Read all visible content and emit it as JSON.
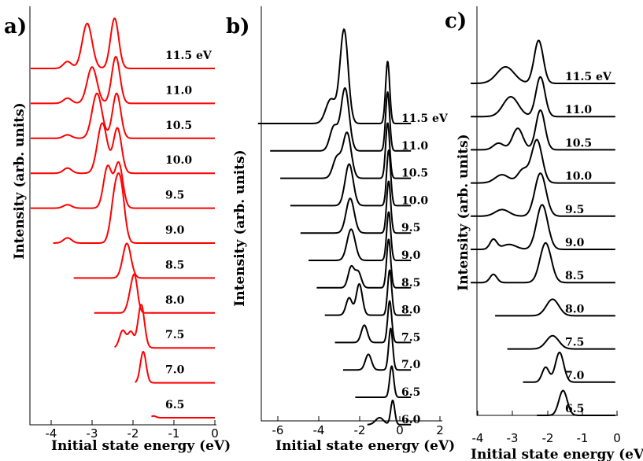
{
  "figure": {
    "panels": [
      {
        "letter": "a)",
        "xlabel": "Initial state energy (eV)",
        "ylabel": "Intensity (arb. units)",
        "ticks": [
          "-4",
          "-3",
          "-2",
          "-1",
          "0"
        ]
      },
      {
        "letter": "b)",
        "xlabel": "Initial state energy (eV)",
        "ylabel": "Intensity (arb. units)",
        "ticks": [
          "-6",
          "-4",
          "-2",
          "0",
          "2"
        ]
      },
      {
        "letter": "c)",
        "xlabel": "Initial state energy (eV)",
        "ylabel": "Intensity (arb. units)",
        "ticks": [
          "-4",
          "-3",
          "-2",
          "-1",
          "0"
        ]
      }
    ]
  },
  "chart_data": [
    {
      "type": "line",
      "panel": "a)",
      "title": "",
      "xlabel": "Initial state energy (eV)",
      "ylabel": "Intensity (arb. units)",
      "xlim": [
        -4.5,
        0
      ],
      "color": "#ff0000",
      "series": [
        {
          "name": "11.5 eV",
          "label": "11.5 eV",
          "xmin": -4.5,
          "peaks": [
            [
              -3.6,
              0.2,
              0.1
            ],
            [
              -3.12,
              1.3,
              0.12
            ],
            [
              -2.45,
              1.45,
              0.1
            ]
          ]
        },
        {
          "name": "11.0 eV",
          "label": "11.0",
          "xmin": -4.5,
          "peaks": [
            [
              -3.6,
              0.15,
              0.1
            ],
            [
              -3.0,
              1.05,
              0.12
            ],
            [
              -2.42,
              1.35,
              0.1
            ]
          ]
        },
        {
          "name": "10.5 eV",
          "label": "10.5",
          "xmin": -4.5,
          "peaks": [
            [
              -3.6,
              0.1,
              0.1
            ],
            [
              -2.88,
              1.3,
              0.12
            ],
            [
              -2.4,
              1.3,
              0.1
            ]
          ]
        },
        {
          "name": "10.0 eV",
          "label": "10.0",
          "xmin": -4.5,
          "peaks": [
            [
              -3.6,
              0.15,
              0.1
            ],
            [
              -2.75,
              1.45,
              0.12
            ],
            [
              -2.38,
              1.3,
              0.1
            ]
          ]
        },
        {
          "name": "9.5 eV",
          "label": "9.5",
          "xmin": -4.5,
          "peaks": [
            [
              -3.6,
              0.1,
              0.1
            ],
            [
              -2.62,
              1.2,
              0.1
            ],
            [
              -2.35,
              1.3,
              0.1
            ]
          ]
        },
        {
          "name": "9.0 eV",
          "label": "9.0",
          "xmin": -3.95,
          "peaks": [
            [
              -3.6,
              0.15,
              0.1
            ],
            [
              -2.45,
              1.15,
              0.1
            ],
            [
              -2.3,
              1.5,
              0.1
            ]
          ]
        },
        {
          "name": "8.5 eV",
          "label": "8.5",
          "xmin": -3.45,
          "peaks": [
            [
              -2.15,
              1.0,
              0.1
            ]
          ]
        },
        {
          "name": "8.0 eV",
          "label": "8.0",
          "xmin": -2.95,
          "peaks": [
            [
              -2.05,
              0.5,
              0.08
            ],
            [
              -1.95,
              0.85,
              0.07
            ]
          ]
        },
        {
          "name": "7.5 eV",
          "label": "7.5",
          "xmin": -2.45,
          "peaks": [
            [
              -2.25,
              0.5,
              0.08
            ],
            [
              -2.05,
              0.45,
              0.07
            ],
            [
              -1.8,
              1.25,
              0.08
            ]
          ]
        },
        {
          "name": "7.0 eV",
          "label": "7.0",
          "xmin": -1.95,
          "peaks": [
            [
              -1.75,
              0.9,
              0.07
            ]
          ]
        },
        {
          "name": "6.5 eV",
          "label": "6.5",
          "xmin": -1.55,
          "peaks": [
            [
              -1.5,
              0.05,
              0.06
            ]
          ]
        }
      ]
    },
    {
      "type": "line",
      "panel": "b)",
      "title": "",
      "xlabel": "Initial state energy (eV)",
      "ylabel": "Intensity (arb. units)",
      "xlim": [
        -7,
        2
      ],
      "color": "#000000",
      "series": [
        {
          "name": "11.5 eV",
          "label": "11.5 eV",
          "xmin": -7.0,
          "peaks": [
            [
              -3.4,
              0.7,
              0.25
            ],
            [
              -2.75,
              2.7,
              0.2
            ],
            [
              -0.6,
              1.8,
              0.1
            ]
          ]
        },
        {
          "name": "11.0 eV",
          "label": "11.0",
          "xmin": -6.4,
          "peaks": [
            [
              -3.25,
              0.7,
              0.2
            ],
            [
              -2.7,
              1.8,
              0.2
            ],
            [
              -0.6,
              1.7,
              0.1
            ]
          ]
        },
        {
          "name": "10.5 eV",
          "label": "10.5",
          "xmin": -5.9,
          "peaks": [
            [
              -3.1,
              0.6,
              0.2
            ],
            [
              -2.6,
              1.3,
              0.2
            ],
            [
              -0.6,
              1.6,
              0.1
            ]
          ]
        },
        {
          "name": "10.0 eV",
          "label": "10.0",
          "xmin": -5.4,
          "peaks": [
            [
              -2.5,
              1.2,
              0.2
            ],
            [
              -0.55,
              1.6,
              0.1
            ]
          ]
        },
        {
          "name": "9.5 eV",
          "label": "9.5",
          "xmin": -4.9,
          "peaks": [
            [
              -2.45,
              1.0,
              0.2
            ],
            [
              -0.55,
              1.5,
              0.1
            ]
          ]
        },
        {
          "name": "9.0 eV",
          "label": "9.0",
          "xmin": -4.5,
          "peaks": [
            [
              -2.4,
              0.9,
              0.2
            ],
            [
              -0.55,
              1.4,
              0.1
            ]
          ]
        },
        {
          "name": "8.5 eV",
          "label": "8.5",
          "xmin": -4.1,
          "peaks": [
            [
              -2.4,
              0.6,
              0.15
            ],
            [
              -2.05,
              0.45,
              0.15
            ],
            [
              -0.55,
              1.4,
              0.1
            ]
          ]
        },
        {
          "name": "8.0 eV",
          "label": "8.0",
          "xmin": -3.7,
          "peaks": [
            [
              -2.5,
              0.5,
              0.15
            ],
            [
              -2.0,
              0.9,
              0.15
            ],
            [
              -0.5,
              1.3,
              0.1
            ]
          ]
        },
        {
          "name": "7.5 eV",
          "label": "7.5",
          "xmin": -3.2,
          "peaks": [
            [
              -1.75,
              0.5,
              0.15
            ],
            [
              -0.5,
              1.2,
              0.1
            ]
          ]
        },
        {
          "name": "7.0 eV",
          "label": "7.0",
          "xmin": -2.8,
          "peaks": [
            [
              -1.55,
              0.45,
              0.15
            ],
            [
              -0.45,
              1.2,
              0.1
            ]
          ]
        },
        {
          "name": "6.5 eV",
          "label": "6.5",
          "xmin": -2.2,
          "peaks": [
            [
              -0.4,
              0.9,
              0.1
            ]
          ]
        },
        {
          "name": "6.0 eV",
          "label": "6.0",
          "xmin": -1.6,
          "peaks": [
            [
              -1.0,
              0.2,
              0.2
            ],
            [
              -0.35,
              0.7,
              0.1
            ]
          ]
        }
      ]
    },
    {
      "type": "line",
      "panel": "c)",
      "title": "",
      "xlabel": "Initial state energy (eV)",
      "ylabel": "Intensity (arb. units)",
      "xlim": [
        -4.2,
        0
      ],
      "color": "#000000",
      "series": [
        {
          "name": "11.5 eV",
          "label": "11.5 eV",
          "xmin": -4.2,
          "peaks": [
            [
              -3.2,
              0.5,
              0.25
            ],
            [
              -2.25,
              1.3,
              0.13
            ]
          ]
        },
        {
          "name": "11.0 eV",
          "label": "11.0",
          "xmin": -4.2,
          "peaks": [
            [
              -3.05,
              0.6,
              0.22
            ],
            [
              -2.2,
              1.2,
              0.13
            ]
          ]
        },
        {
          "name": "10.5 eV",
          "label": "10.5",
          "xmin": -4.2,
          "peaks": [
            [
              -3.4,
              0.2,
              0.15
            ],
            [
              -2.85,
              0.65,
              0.15
            ],
            [
              -2.2,
              1.2,
              0.13
            ]
          ]
        },
        {
          "name": "10.0 eV",
          "label": "10.0",
          "xmin": -4.2,
          "peaks": [
            [
              -3.3,
              0.25,
              0.2
            ],
            [
              -2.7,
              0.4,
              0.15
            ],
            [
              -2.3,
              1.3,
              0.15
            ]
          ]
        },
        {
          "name": "9.5 eV",
          "label": "9.5",
          "xmin": -4.2,
          "peaks": [
            [
              -3.3,
              0.2,
              0.2
            ],
            [
              -2.2,
              1.3,
              0.16
            ]
          ]
        },
        {
          "name": "9.0 eV",
          "label": "9.0",
          "xmin": -4.2,
          "peaks": [
            [
              -3.55,
              0.3,
              0.1
            ],
            [
              -3.1,
              0.15,
              0.2
            ],
            [
              -2.15,
              1.35,
              0.16
            ]
          ]
        },
        {
          "name": "8.5 eV",
          "label": "8.5",
          "xmin": -4.2,
          "peaks": [
            [
              -3.55,
              0.25,
              0.1
            ],
            [
              -2.05,
              1.2,
              0.16
            ]
          ]
        },
        {
          "name": "8.0 eV",
          "label": "8.0",
          "xmin": -3.5,
          "peaks": [
            [
              -1.85,
              0.5,
              0.18
            ]
          ]
        },
        {
          "name": "7.5 eV",
          "label": "7.5",
          "xmin": -3.15,
          "peaks": [
            [
              -1.85,
              0.4,
              0.18
            ]
          ]
        },
        {
          "name": "7.0 eV",
          "label": "7.0",
          "xmin": -2.7,
          "peaks": [
            [
              -2.05,
              0.45,
              0.1
            ],
            [
              -1.65,
              0.9,
              0.12
            ]
          ]
        },
        {
          "name": "6.5 eV",
          "label": "6.5",
          "xmin": -2.3,
          "peaks": [
            [
              -1.55,
              0.75,
              0.12
            ]
          ]
        }
      ]
    }
  ]
}
